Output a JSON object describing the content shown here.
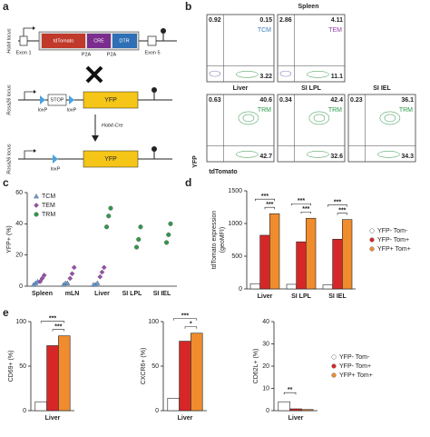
{
  "panel_labels": [
    "a",
    "b",
    "c",
    "d",
    "e"
  ],
  "construct": {
    "hobit_locus": "Hobit locus",
    "exon1": "Exon 1",
    "tdtomato": "tdTomato",
    "cre": "CRE",
    "dtr": "DTR",
    "p2a_1": "P2A",
    "p2a_2": "P2A",
    "exon5": "Exon 5",
    "rosa_locus_1": "Rosa26 locus",
    "loxp_1": "loxP",
    "stop": "STOP",
    "loxp_2": "loxP",
    "yfp_1": "YFP",
    "cross_label": "Hobit-Cre",
    "rosa_locus_2": "Rosa26 locus",
    "loxp_3": "loxP",
    "yfp_2": "YFP"
  },
  "flow": {
    "title": "Spleen",
    "x_label": "tdTomato",
    "y_label": "YFP",
    "plots": [
      {
        "ul": 0.92,
        "ur": 0.15,
        "lr": 3.22,
        "subset": "TCM",
        "subset_color": "#3f7fbf"
      },
      {
        "ul": 2.86,
        "ur": 4.11,
        "lr": 11.1,
        "subset": "TEM",
        "subset_color": "#8e3fa0"
      },
      {
        "tissue": "Liver",
        "ul": 0.63,
        "ur": 40.6,
        "lr": 42.7,
        "subset": "TRM",
        "subset_color": "#2e9a4a"
      },
      {
        "tissue": "SI LPL",
        "ul": 0.34,
        "ur": 42.4,
        "lr": 32.6,
        "subset": "TRM",
        "subset_color": "#2e9a4a"
      },
      {
        "tissue": "SI IEL",
        "ul": 0.23,
        "ur": 36.1,
        "lr": 34.3,
        "subset": "TRM",
        "subset_color": "#2e9a4a"
      }
    ]
  },
  "chart_data": [
    {
      "type": "strip",
      "y_label": "YFP+ (%)",
      "categories": [
        "Spleen",
        "mLN",
        "Liver",
        "SI LPL",
        "SI IEL"
      ],
      "ylim": [
        0,
        60
      ],
      "yticks": [
        0,
        20,
        40,
        60
      ],
      "legend": "upper left",
      "series": [
        {
          "name": "TCM",
          "color": "#6a9fd8",
          "marker": "triangle",
          "values": [
            [
              1,
              2,
              3
            ],
            [
              1,
              2,
              2
            ],
            [
              1,
              1,
              2
            ],
            null,
            null
          ]
        },
        {
          "name": "TEM",
          "color": "#9b4fb0",
          "marker": "diamond",
          "values": [
            [
              3,
              5,
              7
            ],
            [
              5,
              8,
              12
            ],
            [
              6,
              9,
              12
            ],
            null,
            null
          ]
        },
        {
          "name": "TRM",
          "color": "#2e9a4a",
          "marker": "circle",
          "values": [
            null,
            null,
            [
              38,
              45,
              50
            ],
            [
              25,
              30,
              38
            ],
            [
              28,
              33,
              40
            ]
          ]
        }
      ]
    },
    {
      "type": "bar",
      "y_label": [
        "tdTomato expression",
        "(geoMFI)"
      ],
      "categories": [
        "Liver",
        "SI LPL",
        "SI IEL"
      ],
      "ylim": [
        0,
        1500
      ],
      "yticks": [
        0,
        500,
        1000,
        1500
      ],
      "legend": "right",
      "series": [
        {
          "name": "YFP- Tom-",
          "color": "#ffffff",
          "values": [
            80,
            70,
            60
          ]
        },
        {
          "name": "YFP- Tom+",
          "color": "#d62728",
          "values": [
            820,
            720,
            760
          ]
        },
        {
          "name": "YFP+ Tom+",
          "color": "#f08c2e",
          "values": [
            1150,
            1080,
            1060
          ]
        }
      ],
      "annotations": [
        [
          "***",
          "***"
        ],
        [
          "***",
          "***"
        ],
        [
          "***",
          "***"
        ]
      ]
    },
    {
      "type": "bar",
      "y_label": "CD69+ (%)",
      "categories": [
        "Liver"
      ],
      "ylim": [
        0,
        100
      ],
      "yticks": [
        0,
        50,
        100
      ],
      "series": [
        {
          "color": "#ffffff",
          "values": [
            10
          ]
        },
        {
          "color": "#d62728",
          "values": [
            73
          ]
        },
        {
          "color": "#f08c2e",
          "values": [
            84
          ]
        }
      ],
      "annotations": [
        [
          "***",
          "***"
        ]
      ]
    },
    {
      "type": "bar",
      "y_label": "CXCR6+ (%)",
      "categories": [
        "Liver"
      ],
      "ylim": [
        0,
        100
      ],
      "yticks": [
        0,
        50,
        100
      ],
      "series": [
        {
          "color": "#ffffff",
          "values": [
            14
          ]
        },
        {
          "color": "#d62728",
          "values": [
            78
          ]
        },
        {
          "color": "#f08c2e",
          "values": [
            87
          ]
        }
      ],
      "annotations": [
        [
          "***",
          "*"
        ]
      ]
    },
    {
      "type": "bar",
      "y_label": "CD62L+ (%)",
      "categories": [
        "Liver"
      ],
      "ylim": [
        0,
        40
      ],
      "yticks": [
        0,
        10,
        20,
        30,
        40
      ],
      "legend": "right",
      "series": [
        {
          "name": "YFP- Tom-",
          "color": "#ffffff",
          "values": [
            4
          ]
        },
        {
          "name": "YFP- Tom+",
          "color": "#d62728",
          "values": [
            0.8
          ]
        },
        {
          "name": "YFP+ Tom+",
          "color": "#f08c2e",
          "values": [
            0.5
          ]
        }
      ],
      "annotations": [
        [
          "**"
        ]
      ]
    }
  ]
}
